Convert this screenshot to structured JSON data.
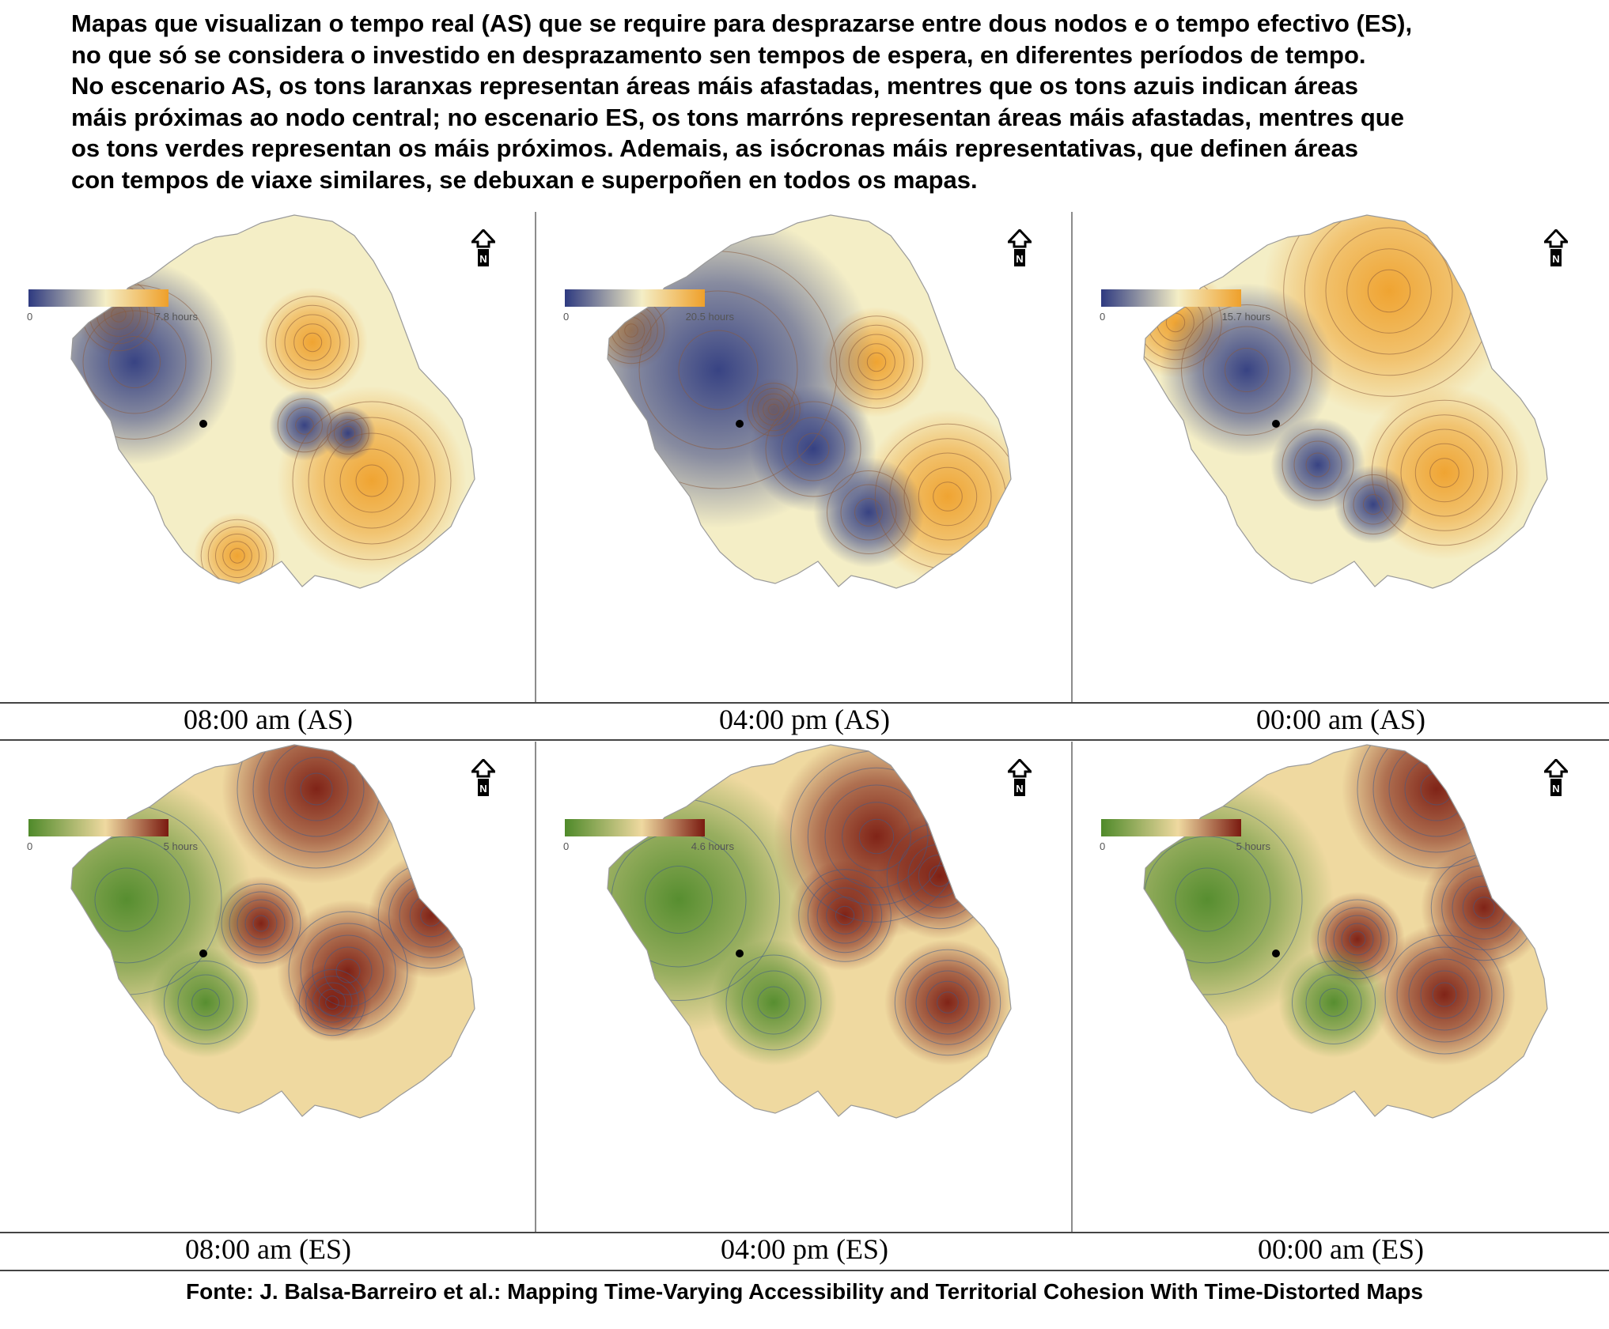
{
  "description_lines": [
    "Mapas que visualizan o tempo real (AS) que se require para desprazarse entre dous nodos e o tempo efectivo (ES),",
    "no que só se considera o investido en desprazamento sen tempos de espera, en diferentes períodos de tempo.",
    "No escenario AS, os tons laranxas representan áreas máis afastadas, mentres que os tons azuis indican áreas",
    "máis próximas ao nodo central; no escenario ES, os tons marróns representan áreas máis afastadas, mentres que",
    "os tons verdes representan os máis próximos. Ademais, as  isócronas máis representativas, que definen áreas",
    "con tempos de viaxe similares, se debuxan e superpoñen en todos os mapas."
  ],
  "panels": [
    {
      "caption": "08:00 am (AS)",
      "legend_min": "0",
      "legend_max": "7.8 hours",
      "scheme": "as",
      "variant": 0
    },
    {
      "caption": "04:00 pm (AS)",
      "legend_min": "0",
      "legend_max": "20.5 hours",
      "scheme": "as",
      "variant": 1
    },
    {
      "caption": "00:00 am (AS)",
      "legend_min": "0",
      "legend_max": "15.7 hours",
      "scheme": "as",
      "variant": 2
    },
    {
      "caption": "08:00 am (ES)",
      "legend_min": "0",
      "legend_max": "5 hours",
      "scheme": "es",
      "variant": 0
    },
    {
      "caption": "04:00 pm (ES)",
      "legend_min": "0",
      "legend_max": "4.6 hours",
      "scheme": "es",
      "variant": 1
    },
    {
      "caption": "00:00 am (ES)",
      "legend_min": "0",
      "legend_max": "5 hours",
      "scheme": "es",
      "variant": 2
    }
  ],
  "north_arrow_label": "N",
  "colors": {
    "as_low": "#2e3a80",
    "as_mid": "#f4eec6",
    "as_high": "#efa02a",
    "es_low": "#4f8a2a",
    "es_mid": "#efd9a0",
    "es_high": "#7a1a10",
    "contour": "#8a5a3a",
    "contour_es": "#3c5a8a",
    "node": "#000000"
  },
  "source": "Fonte: J. Balsa-Barreiro et al.: Mapping Time-Varying Accessibility and Territorial Cohesion With Time-Distorted Maps"
}
